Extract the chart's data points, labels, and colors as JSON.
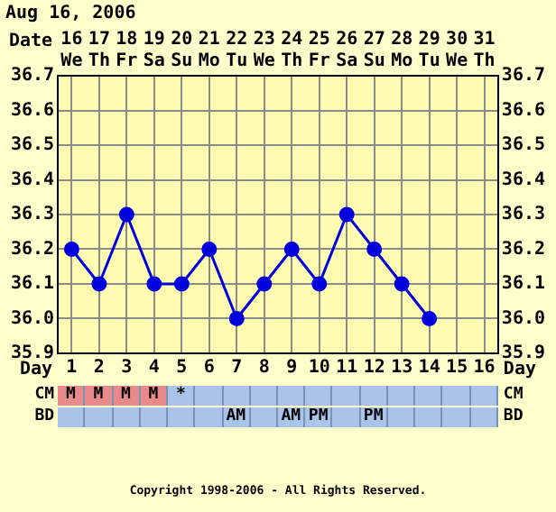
{
  "chart_data": [
    {
      "type": "line",
      "title": "Aug 16, 2006",
      "xlabel": "Day",
      "x2label": "Date",
      "x": [
        1,
        2,
        3,
        4,
        5,
        6,
        7,
        8,
        9,
        10,
        11,
        12,
        13,
        14
      ],
      "series": [
        {
          "color": "#0000dd",
          "values": [
            36.2,
            36.1,
            36.3,
            36.1,
            36.1,
            36.2,
            36.0,
            36.1,
            36.2,
            36.1,
            36.3,
            36.2,
            36.1,
            36.0
          ]
        }
      ],
      "xlim": [
        0.5,
        16.5
      ],
      "xticks": [
        1,
        2,
        3,
        4,
        5,
        6,
        7,
        8,
        9,
        10,
        11,
        12,
        13,
        14,
        15,
        16
      ],
      "x2lim": [
        15.5,
        31.5
      ],
      "x2ticks": [
        {
          "value": 16,
          "label": "16 We"
        },
        {
          "value": 17,
          "label": "17 Th"
        },
        {
          "value": 18,
          "label": "18 Fr"
        },
        {
          "value": 19,
          "label": "19 Sa"
        },
        {
          "value": 20,
          "label": "20 Su"
        },
        {
          "value": 21,
          "label": "21 Mo"
        },
        {
          "value": 22,
          "label": "22 Tu"
        },
        {
          "value": 23,
          "label": "23 We"
        },
        {
          "value": 24,
          "label": "24 Th"
        },
        {
          "value": 25,
          "label": "25 Fr"
        },
        {
          "value": 26,
          "label": "26 Sa"
        },
        {
          "value": 27,
          "label": "27 Su"
        },
        {
          "value": 28,
          "label": "28 Mo"
        },
        {
          "value": 29,
          "label": "29 Tu"
        },
        {
          "value": 30,
          "label": "30 We"
        },
        {
          "value": 31,
          "label": "31 Th"
        }
      ],
      "ylim": [
        35.9,
        36.7
      ],
      "yticks": [
        35.9,
        {
          "value": 36,
          "label": "36.0"
        },
        36.1,
        36.2,
        36.3,
        36.4,
        36.5,
        36.6,
        36.7
      ],
      "y2lim": [
        35.9,
        36.7
      ],
      "y2ticks": [
        35.9,
        {
          "value": 36,
          "label": "36.0"
        },
        36.1,
        36.2,
        36.3,
        36.4,
        36.5,
        36.6,
        36.7
      ],
      "grid": true,
      "legend": false,
      "marker": "circle",
      "line_style": "solid"
    },
    {
      "type": "other",
      "categories": [
        null,
        null,
        null,
        null,
        null,
        null,
        null,
        null,
        null,
        null,
        null,
        null,
        null,
        null,
        null,
        null
      ],
      "y_categories": [
        "CM",
        "BD"
      ],
      "y2_categories": [
        "CM",
        "BD"
      ],
      "colors": [
        [
          "#e88a8a",
          "#e88a8a",
          "#e88a8a",
          "#e88a8a",
          "#a9c4e8",
          "#a9c4e8",
          "#a9c4e8",
          "#a9c4e8",
          "#a9c4e8",
          "#a9c4e8",
          "#a9c4e8",
          "#a9c4e8",
          "#a9c4e8",
          "#a9c4e8",
          "#a9c4e8",
          "#a9c4e8"
        ],
        [
          "#a9c4e8",
          "#a9c4e8",
          "#a9c4e8",
          "#a9c4e8",
          "#a9c4e8",
          "#a9c4e8",
          "#a9c4e8",
          "#a9c4e8",
          "#a9c4e8",
          "#a9c4e8",
          "#a9c4e8",
          "#a9c4e8",
          "#a9c4e8",
          "#a9c4e8",
          "#a9c4e8",
          "#a9c4e8"
        ]
      ],
      "cell_labels": [
        [
          "M",
          "M",
          "M",
          "M",
          "*",
          null,
          null,
          null,
          null,
          null,
          null,
          null,
          null,
          null,
          null,
          null
        ],
        [
          null,
          null,
          null,
          null,
          null,
          null,
          "AM",
          null,
          "AM",
          "PM",
          null,
          "PM",
          null,
          null,
          null,
          null
        ]
      ],
      "annotations": [
        "Copyright 1998-2006 - All Rights Reserved."
      ]
    }
  ]
}
